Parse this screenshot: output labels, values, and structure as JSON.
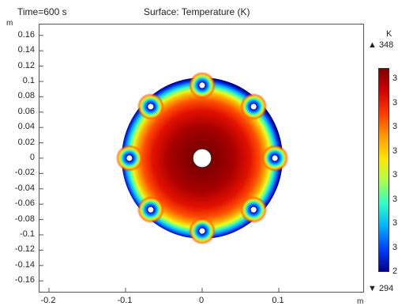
{
  "header": {
    "time_label": "Time=600 s",
    "title": "Surface: Temperature (K)"
  },
  "axes": {
    "y_unit": "m",
    "x_unit": "m",
    "y_ticks": [
      "0.16",
      "0.14",
      "0.12",
      "0.1",
      "0.08",
      "0.06",
      "0.04",
      "0.02",
      "0",
      "-0.02",
      "-0.04",
      "-0.06",
      "-0.08",
      "-0.1",
      "-0.12",
      "-0.14",
      "-0.16"
    ],
    "x_ticks": [
      "-0.2",
      "-0.1",
      "0",
      "0.1"
    ]
  },
  "colorbar": {
    "unit": "K",
    "max_label": "▲ 348",
    "min_label": "▼ 294",
    "tick_labels": [
      "3",
      "3",
      "3",
      "3",
      "3",
      "3",
      "3",
      "3",
      "2"
    ],
    "colors": [
      "#7f0000",
      "#d40000",
      "#ff3c00",
      "#ff9a00",
      "#ffe600",
      "#a8ff50",
      "#30ffc8",
      "#00b0ff",
      "#0040ff",
      "#00008f"
    ]
  },
  "chart_data": {
    "type": "heatmap",
    "title": "Surface: Temperature (K)",
    "subtitle": "Time=600 s",
    "xlabel": "m",
    "ylabel": "m",
    "xlim": [
      -0.21,
      0.21
    ],
    "ylim": [
      -0.17,
      0.17
    ],
    "x_ticks": [
      -0.2,
      -0.1,
      0,
      0.1
    ],
    "y_ticks": [
      0.16,
      0.14,
      0.12,
      0.1,
      0.08,
      0.06,
      0.04,
      0.02,
      0,
      -0.02,
      -0.04,
      -0.06,
      -0.08,
      -0.1,
      -0.12,
      -0.14,
      -0.16
    ],
    "colorbar_range": [
      294,
      348
    ],
    "domain": {
      "outer_radius": 0.15,
      "center_hole_radius": 0.012,
      "hole_ring_radius": 0.095,
      "hole_count": 8,
      "small_hole_radius": 0.004
    }
  }
}
